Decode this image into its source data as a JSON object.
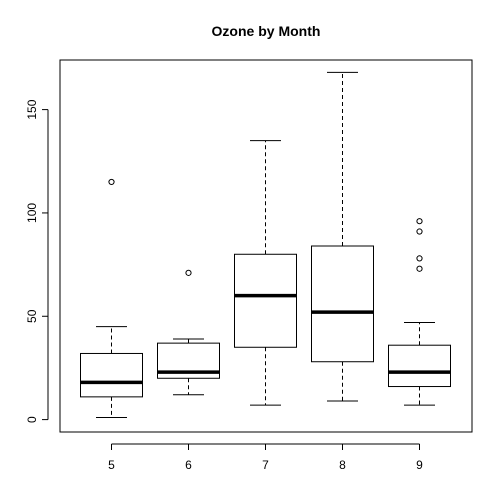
{
  "chart_data": {
    "type": "boxplot",
    "title": "Ozone by Month",
    "xlabel": "",
    "ylabel": "",
    "ylim": [
      -6,
      174
    ],
    "y_ticks": [
      0,
      50,
      100,
      150
    ],
    "categories": [
      "5",
      "6",
      "7",
      "8",
      "9"
    ],
    "boxes": [
      {
        "label": "5",
        "whisker_low": 1,
        "q1": 11,
        "median": 18,
        "q3": 32,
        "whisker_high": 45,
        "outliers": [
          115
        ]
      },
      {
        "label": "6",
        "whisker_low": 12,
        "q1": 20,
        "median": 23,
        "q3": 37,
        "whisker_high": 39,
        "outliers": [
          71
        ]
      },
      {
        "label": "7",
        "whisker_low": 7,
        "q1": 35,
        "median": 60,
        "q3": 80,
        "whisker_high": 135,
        "outliers": []
      },
      {
        "label": "8",
        "whisker_low": 9,
        "q1": 28,
        "median": 52,
        "q3": 84,
        "whisker_high": 168,
        "outliers": []
      },
      {
        "label": "9",
        "whisker_low": 7,
        "q1": 16,
        "median": 23,
        "q3": 36,
        "whisker_high": 47,
        "outliers": [
          73,
          78,
          91,
          96
        ]
      }
    ],
    "grid": false,
    "colors": {
      "box_stroke": "#000000",
      "background": "#ffffff"
    }
  }
}
